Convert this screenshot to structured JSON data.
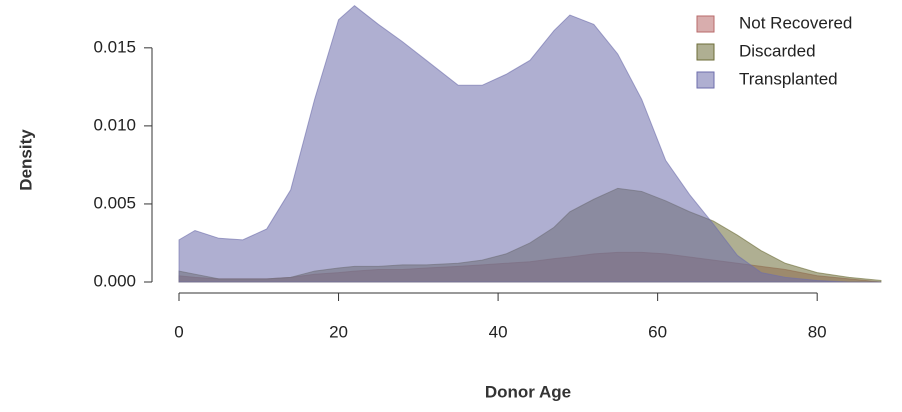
{
  "chart_data": {
    "type": "area",
    "x_label": "Donor Age",
    "y_label": "Density",
    "x": [
      0,
      2,
      5,
      8,
      11,
      14,
      17,
      20,
      22,
      25,
      28,
      31,
      35,
      38,
      41,
      44,
      47,
      49,
      52,
      55,
      58,
      61,
      64,
      67,
      70,
      73,
      76,
      80,
      84,
      88
    ],
    "series": [
      {
        "name": "Not Recovered",
        "color": "#b86a6a",
        "values": [
          0.0004,
          0.0003,
          0.0002,
          0.0002,
          0.0002,
          0.0003,
          0.0005,
          0.0006,
          0.0007,
          0.0008,
          0.0008,
          0.0009,
          0.001,
          0.0011,
          0.0012,
          0.0013,
          0.0015,
          0.0016,
          0.0018,
          0.0019,
          0.0019,
          0.0018,
          0.0016,
          0.0014,
          0.0012,
          0.001,
          0.0008,
          0.0004,
          0.0002,
          0.0
        ]
      },
      {
        "name": "Discarded",
        "color": "#6e6e38",
        "values": [
          0.0007,
          0.0005,
          0.0002,
          0.0002,
          0.0002,
          0.0003,
          0.0007,
          0.0009,
          0.001,
          0.001,
          0.0011,
          0.0011,
          0.0012,
          0.0014,
          0.0018,
          0.0025,
          0.0035,
          0.0045,
          0.0053,
          0.006,
          0.0058,
          0.0052,
          0.0045,
          0.0039,
          0.003,
          0.002,
          0.0012,
          0.0006,
          0.0003,
          0.0001
        ]
      },
      {
        "name": "Transplanted",
        "color": "#6e6eac",
        "values": [
          0.0027,
          0.0033,
          0.0028,
          0.0027,
          0.0034,
          0.0059,
          0.0117,
          0.0168,
          0.0177,
          0.0165,
          0.0154,
          0.0142,
          0.0126,
          0.0126,
          0.0133,
          0.0142,
          0.0161,
          0.0171,
          0.0165,
          0.0146,
          0.0117,
          0.0078,
          0.0056,
          0.0037,
          0.0017,
          0.0006,
          0.0003,
          0.0001,
          0.0,
          0.0
        ]
      }
    ],
    "xlim": [
      0,
      88
    ],
    "xticks": [
      0,
      20,
      40,
      60,
      80
    ],
    "ylim": [
      0,
      0.018
    ],
    "yticks": [
      {
        "value": 0,
        "label": "0.000"
      },
      {
        "value": 0.005,
        "label": "0.005"
      },
      {
        "value": 0.01,
        "label": "0.010"
      },
      {
        "value": 0.015,
        "label": "0.015"
      }
    ],
    "legend": "top-right",
    "grid": false
  }
}
